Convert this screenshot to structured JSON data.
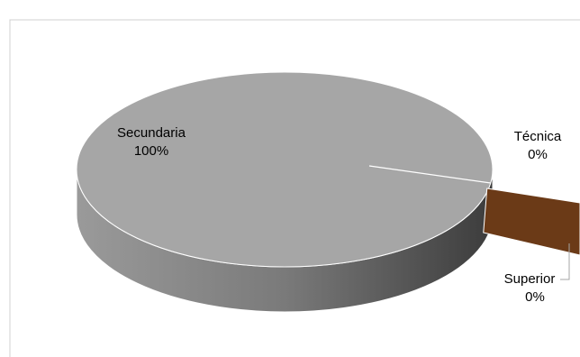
{
  "chart_data": {
    "type": "pie",
    "categories": [
      "Secundaria",
      "Técnica",
      "Superior"
    ],
    "values": [
      100,
      0,
      0
    ],
    "value_labels": [
      "100%",
      "0%",
      "0%"
    ],
    "colors": [
      "#a6a6a6",
      "#d9d9d9",
      "#6b3a17"
    ]
  }
}
